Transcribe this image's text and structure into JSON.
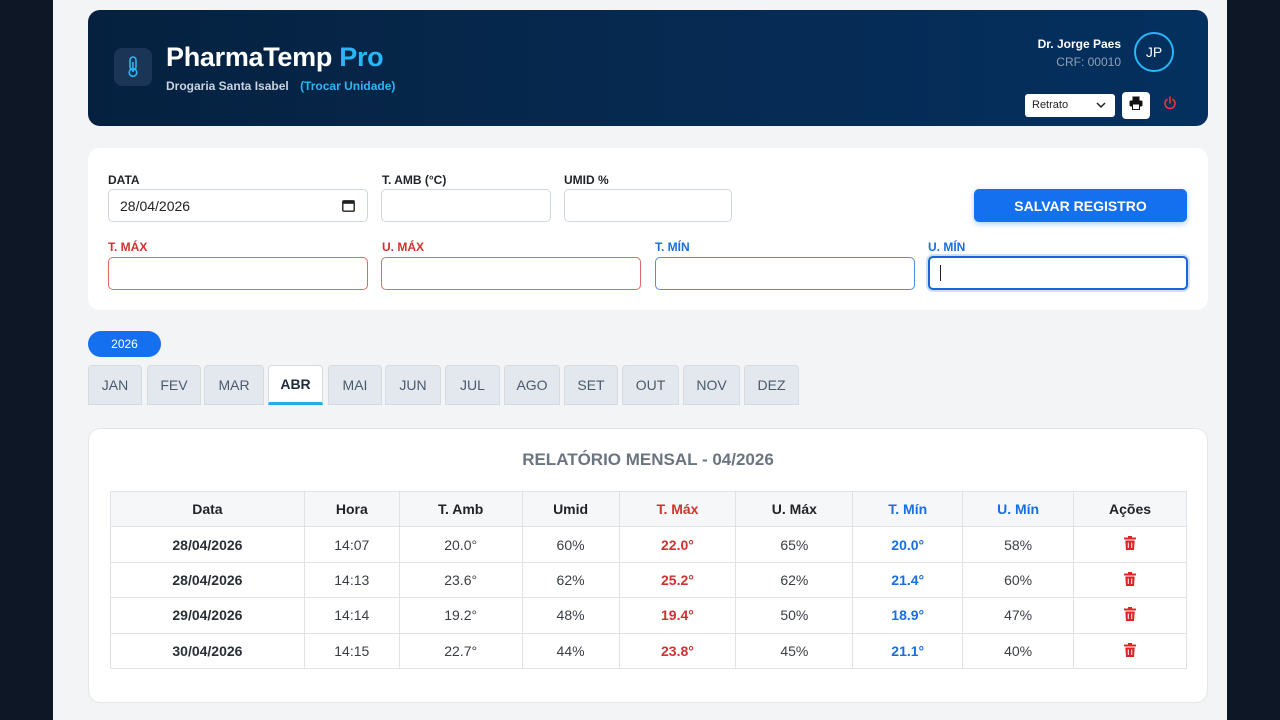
{
  "header": {
    "brand_main": "PharmaTemp",
    "brand_accent": "Pro",
    "store": "Drogaria Santa Isabel",
    "change_unit": "(Trocar Unidade)",
    "user_name": "Dr. Jorge Paes",
    "user_crf": "CRF: 00010",
    "avatar_initials": "JP",
    "orientation_selected": "Retrato",
    "print_icon": "printer-icon",
    "logout_icon": "power-icon"
  },
  "form": {
    "data_label": "DATA",
    "data_value": "28/04/2026",
    "t_amb_label": "T. AMB (°C)",
    "umid_label": "UMID %",
    "save_label": "SALVAR REGISTRO",
    "t_max_label": "T. MÁX",
    "u_max_label": "U. MÁX",
    "t_min_label": "T. MÍN",
    "u_min_label": "U. MÍN"
  },
  "year": "2026",
  "months": [
    "JAN",
    "FEV",
    "MAR",
    "ABR",
    "MAI",
    "JUN",
    "JUL",
    "AGO",
    "SET",
    "OUT",
    "NOV",
    "DEZ"
  ],
  "active_month": "ABR",
  "report": {
    "title": "RELATÓRIO MENSAL - 04/2026",
    "columns": [
      "Data",
      "Hora",
      "T. Amb",
      "Umid",
      "T. Máx",
      "U. Máx",
      "T. Mín",
      "U. Mín",
      "Ações"
    ],
    "rows": [
      [
        "28/04/2026",
        "14:07",
        "20.0°",
        "60%",
        "22.0°",
        "65%",
        "20.0°",
        "58%"
      ],
      [
        "28/04/2026",
        "14:13",
        "23.6°",
        "62%",
        "25.2°",
        "62%",
        "21.4°",
        "60%"
      ],
      [
        "29/04/2026",
        "14:14",
        "19.2°",
        "48%",
        "19.4°",
        "50%",
        "18.9°",
        "47%"
      ],
      [
        "30/04/2026",
        "14:15",
        "22.7°",
        "44%",
        "23.8°",
        "45%",
        "21.1°",
        "40%"
      ]
    ],
    "action_icon": "trash-icon"
  },
  "colors": {
    "accent": "#1570f0",
    "brand_cyan": "#29b6f6",
    "danger": "#d0322f",
    "cold": "#1a6ee0"
  }
}
